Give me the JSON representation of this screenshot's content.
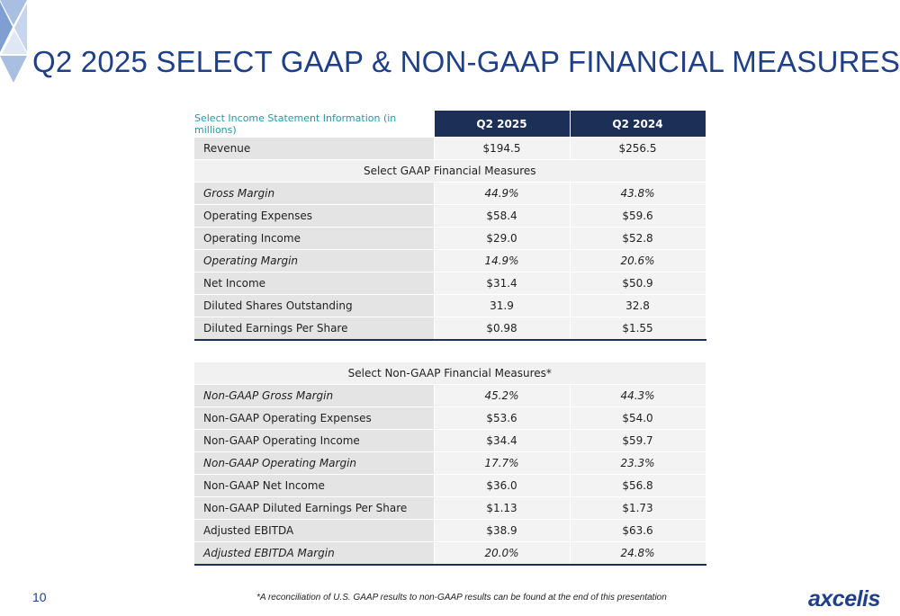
{
  "page_title": "Q2 2025 SELECT GAAP & NON-GAAP FINANCIAL MEASURES",
  "colors": {
    "title": "#1f3f87",
    "header_bg": "#1c2f57",
    "header_label": "#1f9aa6",
    "accent_triangles": "#9fb6dc"
  },
  "table1": {
    "header_label": "Select Income Statement Information (in millions)",
    "col1": "Q2 2025",
    "col2": "Q2 2024",
    "revenue": {
      "label": "Revenue",
      "v1": "$194.5",
      "v2": "$256.5"
    },
    "section_title": "Select GAAP Financial Measures",
    "rows": [
      {
        "label": "Gross Margin",
        "v1": "44.9%",
        "v2": "43.8%"
      },
      {
        "label": "Operating Expenses",
        "v1": "$58.4",
        "v2": "$59.6"
      },
      {
        "label": "Operating Income",
        "v1": "$29.0",
        "v2": "$52.8"
      },
      {
        "label": "Operating Margin",
        "v1": "14.9%",
        "v2": "20.6%"
      },
      {
        "label": "Net Income",
        "v1": "$31.4",
        "v2": "$50.9"
      },
      {
        "label": "Diluted Shares Outstanding",
        "v1": "31.9",
        "v2": "32.8"
      },
      {
        "label": "Diluted Earnings Per Share",
        "v1": "$0.98",
        "v2": "$1.55"
      }
    ]
  },
  "table2": {
    "section_title": "Select Non-GAAP Financial Measures*",
    "rows": [
      {
        "label": "Non-GAAP Gross Margin",
        "v1": "45.2%",
        "v2": "44.3%"
      },
      {
        "label": "Non-GAAP Operating Expenses",
        "v1": "$53.6",
        "v2": "$54.0"
      },
      {
        "label": "Non-GAAP Operating Income",
        "v1": "$34.4",
        "v2": "$59.7"
      },
      {
        "label": "Non-GAAP Operating Margin",
        "v1": "17.7%",
        "v2": "23.3%"
      },
      {
        "label": "Non-GAAP Net Income",
        "v1": "$36.0",
        "v2": "$56.8"
      },
      {
        "label": "Non-GAAP Diluted Earnings Per Share",
        "v1": "$1.13",
        "v2": "$1.73"
      },
      {
        "label": "Adjusted EBITDA",
        "v1": "$38.9",
        "v2": "$63.6"
      },
      {
        "label": "Adjusted EBITDA Margin",
        "v1": "20.0%",
        "v2": "24.8%"
      }
    ]
  },
  "page_number": "10",
  "footnote": "*A reconciliation of U.S. GAAP results to non-GAAP results can be found at the end of this presentation",
  "logo_text": "axcelis"
}
